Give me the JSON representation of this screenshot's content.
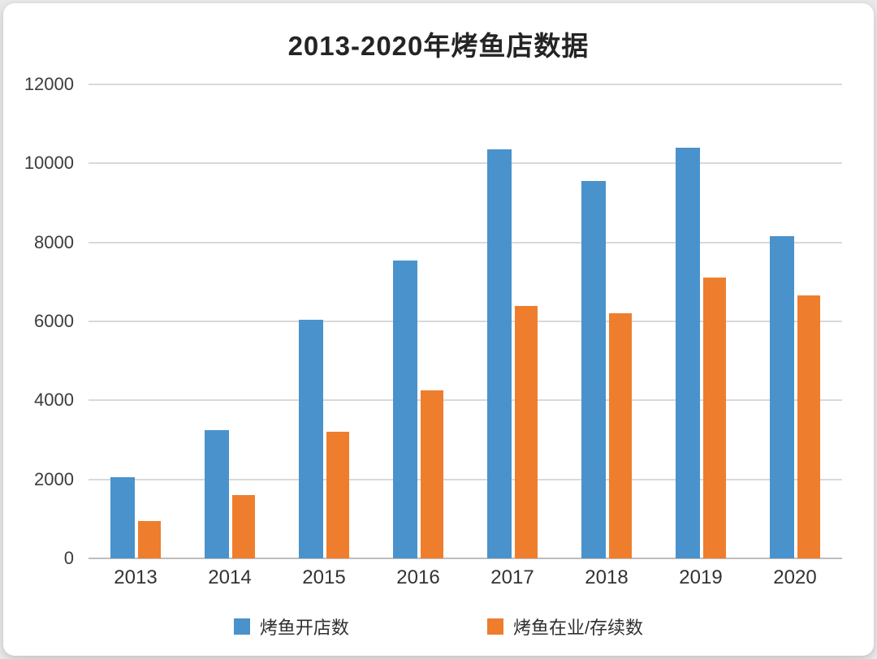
{
  "chart_data": {
    "type": "bar",
    "title": "2013-2020年烤鱼店数据",
    "categories": [
      "2013",
      "2014",
      "2015",
      "2016",
      "2017",
      "2018",
      "2019",
      "2020"
    ],
    "series": [
      {
        "name": "烤鱼开店数",
        "color": "#4a92cc",
        "values": [
          2050,
          3250,
          6050,
          7550,
          10350,
          9550,
          10400,
          8150
        ]
      },
      {
        "name": "烤鱼在业/存续数",
        "color": "#ee7e2e",
        "values": [
          950,
          1600,
          3200,
          4250,
          6400,
          6200,
          7100,
          6650
        ]
      }
    ],
    "ylim": [
      0,
      12000
    ],
    "yticks": [
      0,
      2000,
      4000,
      6000,
      8000,
      10000,
      12000
    ],
    "grid": true,
    "legend_position": "bottom",
    "xlabel": "",
    "ylabel": ""
  }
}
